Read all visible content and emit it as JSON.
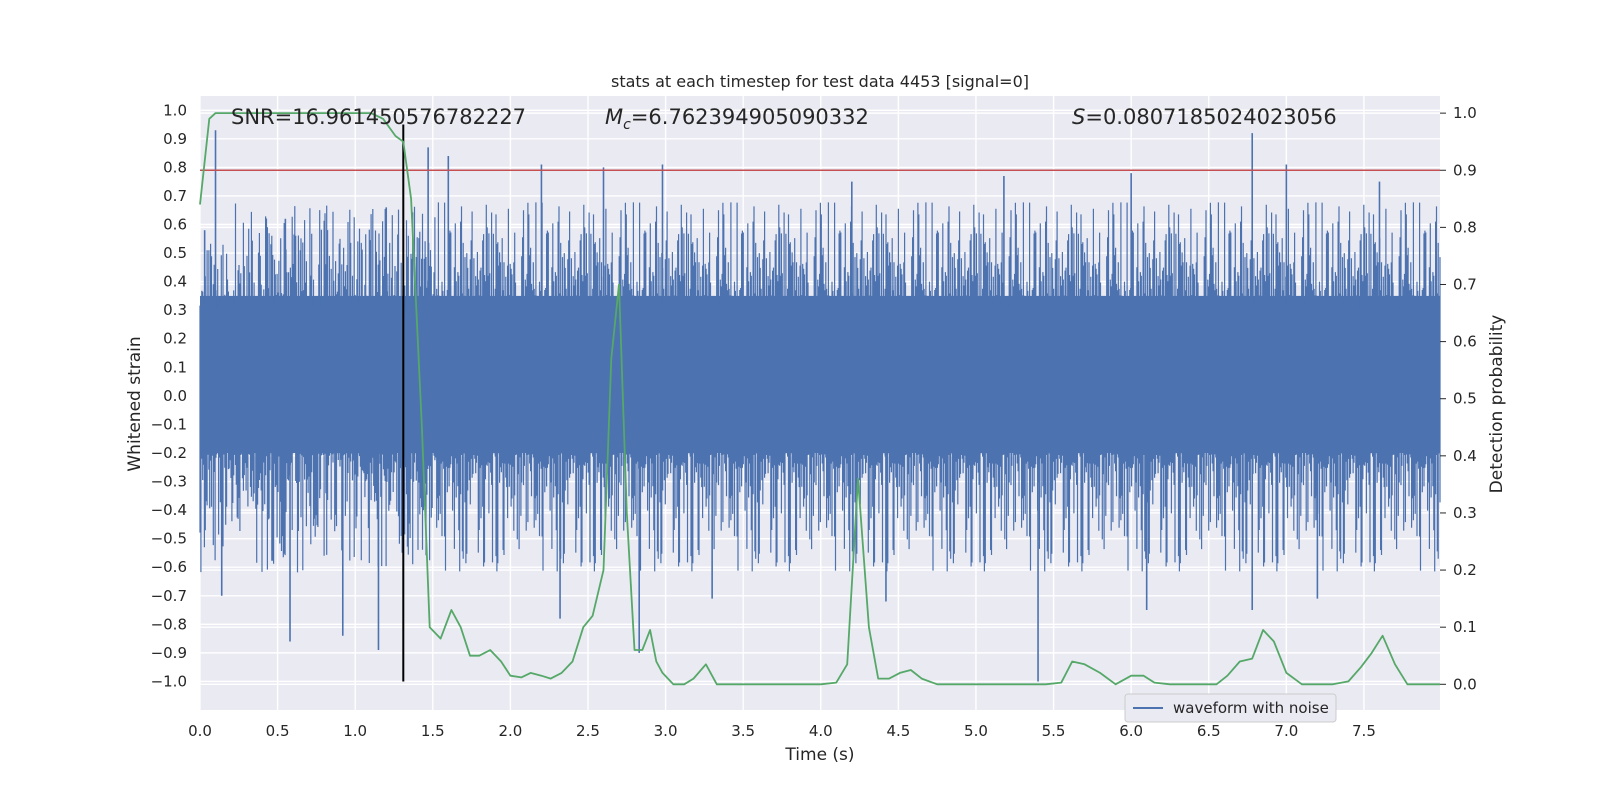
{
  "chart_data": {
    "type": "line",
    "title": "stats at each timestep for test data 4453 [signal=0]",
    "xlabel": "Time (s)",
    "ylabel_left": "Whitened strain",
    "ylabel_right": "Detection probability",
    "xlim": [
      0.0,
      7.99
    ],
    "ylim_left": [
      -1.1,
      1.05
    ],
    "ylim_right": [
      -0.045,
      1.03
    ],
    "x_ticks": [
      0.0,
      0.5,
      1.0,
      1.5,
      2.0,
      2.5,
      3.0,
      3.5,
      4.0,
      4.5,
      5.0,
      5.5,
      6.0,
      6.5,
      7.0,
      7.5
    ],
    "x_tick_labels": [
      "0.0",
      "0.5",
      "1.0",
      "1.5",
      "2.0",
      "2.5",
      "3.0",
      "3.5",
      "4.0",
      "4.5",
      "5.0",
      "5.5",
      "6.0",
      "6.5",
      "7.0",
      "7.5"
    ],
    "y_left_ticks": [
      1.0,
      0.9,
      0.8,
      0.7,
      0.6,
      0.5,
      0.4,
      0.3,
      0.2,
      0.1,
      0.0,
      -0.1,
      -0.2,
      -0.3,
      -0.4,
      -0.5,
      -0.6,
      -0.7,
      -0.8,
      -0.9,
      -1.0
    ],
    "y_left_tick_labels": [
      "1.0",
      "0.9",
      "0.8",
      "0.7",
      "0.6",
      "0.5",
      "0.4",
      "0.3",
      "0.2",
      "0.1",
      "0.0",
      "−0.1",
      "−0.2",
      "−0.3",
      "−0.4",
      "−0.5",
      "−0.6",
      "−0.7",
      "−0.8",
      "−0.9",
      "−1.0"
    ],
    "y_right_ticks": [
      1.0,
      0.9,
      0.8,
      0.7,
      0.6,
      0.5,
      0.4,
      0.3,
      0.2,
      0.1,
      0.0
    ],
    "y_right_tick_labels": [
      "1.0",
      "0.9",
      "0.8",
      "0.7",
      "0.6",
      "0.5",
      "0.4",
      "0.3",
      "0.2",
      "0.1",
      "0.0"
    ],
    "annotations": {
      "snr": "SNR=16.961450576782227",
      "mc_symbol": "M",
      "mc_sub": "c",
      "mc_value": "=6.762394905090332",
      "s_symbol": "S",
      "s_value": "=0.0807185024023056"
    },
    "series": [
      {
        "name": "waveform with noise",
        "axis": "left",
        "color": "#4c72b0",
        "kind": "noise envelope",
        "envelope_band": [
          -0.2,
          0.35
        ],
        "upper_spikes": [
          {
            "x": 0.03,
            "y": 0.58
          },
          {
            "x": 0.1,
            "y": 0.93
          },
          {
            "x": 0.55,
            "y": 0.62
          },
          {
            "x": 1.2,
            "y": 0.66
          },
          {
            "x": 1.47,
            "y": 0.87
          },
          {
            "x": 1.6,
            "y": 0.84
          },
          {
            "x": 2.2,
            "y": 0.81
          },
          {
            "x": 2.6,
            "y": 0.8
          },
          {
            "x": 2.98,
            "y": 0.81
          },
          {
            "x": 4.2,
            "y": 0.75
          },
          {
            "x": 5.18,
            "y": 0.77
          },
          {
            "x": 6.0,
            "y": 0.78
          },
          {
            "x": 6.78,
            "y": 0.92
          },
          {
            "x": 7.0,
            "y": 0.81
          },
          {
            "x": 7.6,
            "y": 0.75
          }
        ],
        "lower_spikes": [
          {
            "x": 0.14,
            "y": -0.7
          },
          {
            "x": 0.58,
            "y": -0.86
          },
          {
            "x": 0.92,
            "y": -0.84
          },
          {
            "x": 1.15,
            "y": -0.89
          },
          {
            "x": 2.32,
            "y": -0.78
          },
          {
            "x": 2.83,
            "y": -0.9
          },
          {
            "x": 3.3,
            "y": -0.71
          },
          {
            "x": 4.42,
            "y": -0.72
          },
          {
            "x": 5.4,
            "y": -1.0
          },
          {
            "x": 6.1,
            "y": -0.75
          },
          {
            "x": 6.78,
            "y": -0.75
          },
          {
            "x": 7.2,
            "y": -0.71
          }
        ]
      },
      {
        "name": "detection probability",
        "axis": "right",
        "color": "#55a868",
        "x": [
          0.0,
          0.06,
          0.1,
          0.2,
          0.4,
          0.6,
          0.8,
          1.0,
          1.05,
          1.1,
          1.18,
          1.26,
          1.31,
          1.36,
          1.43,
          1.48,
          1.55,
          1.62,
          1.68,
          1.74,
          1.8,
          1.87,
          1.94,
          2.0,
          2.07,
          2.13,
          2.2,
          2.26,
          2.33,
          2.4,
          2.47,
          2.53,
          2.6,
          2.65,
          2.7,
          2.75,
          2.8,
          2.85,
          2.9,
          2.94,
          2.98,
          3.05,
          3.12,
          3.18,
          3.26,
          3.33,
          3.4,
          3.5,
          3.6,
          3.7,
          3.8,
          3.9,
          4.0,
          4.1,
          4.17,
          4.24,
          4.31,
          4.37,
          4.44,
          4.51,
          4.58,
          4.65,
          4.75,
          4.9,
          5.1,
          5.3,
          5.45,
          5.55,
          5.62,
          5.7,
          5.8,
          5.9,
          6.0,
          6.08,
          6.15,
          6.25,
          6.4,
          6.55,
          6.62,
          6.7,
          6.78,
          6.85,
          6.92,
          7.0,
          7.1,
          7.2,
          7.3,
          7.4,
          7.48,
          7.55,
          7.62,
          7.7,
          7.78,
          7.9,
          7.99
        ],
        "values": [
          0.84,
          0.99,
          1.0,
          1.0,
          1.0,
          1.0,
          1.0,
          1.0,
          1.0,
          1.0,
          0.99,
          0.96,
          0.95,
          0.85,
          0.45,
          0.1,
          0.08,
          0.13,
          0.1,
          0.05,
          0.05,
          0.06,
          0.04,
          0.015,
          0.012,
          0.02,
          0.015,
          0.01,
          0.02,
          0.04,
          0.1,
          0.12,
          0.2,
          0.57,
          0.7,
          0.3,
          0.06,
          0.06,
          0.095,
          0.04,
          0.02,
          0.0,
          0.0,
          0.01,
          0.035,
          0.0,
          0.0,
          0.0,
          0.0,
          0.0,
          0.0,
          0.0,
          0.0,
          0.003,
          0.035,
          0.36,
          0.1,
          0.01,
          0.01,
          0.02,
          0.025,
          0.01,
          0.0,
          0.0,
          0.0,
          0.0,
          0.0,
          0.003,
          0.04,
          0.035,
          0.02,
          0.0,
          0.015,
          0.015,
          0.003,
          0.0,
          0.0,
          0.0,
          0.015,
          0.04,
          0.045,
          0.095,
          0.075,
          0.02,
          0.0,
          0.0,
          0.0,
          0.005,
          0.03,
          0.055,
          0.085,
          0.035,
          0.0,
          0.0,
          0.0
        ]
      },
      {
        "name": "threshold",
        "axis": "right",
        "color": "#c44e52",
        "value": 0.9
      },
      {
        "name": "marker",
        "axis": "left",
        "color": "#000000",
        "x": 1.31,
        "y_range": [
          -1.0,
          0.95
        ]
      }
    ],
    "legend": {
      "label": "waveform with noise",
      "position": "lower-right",
      "color": "#4c72b0"
    },
    "plot_background": "#eaeaf2",
    "grid": true
  }
}
